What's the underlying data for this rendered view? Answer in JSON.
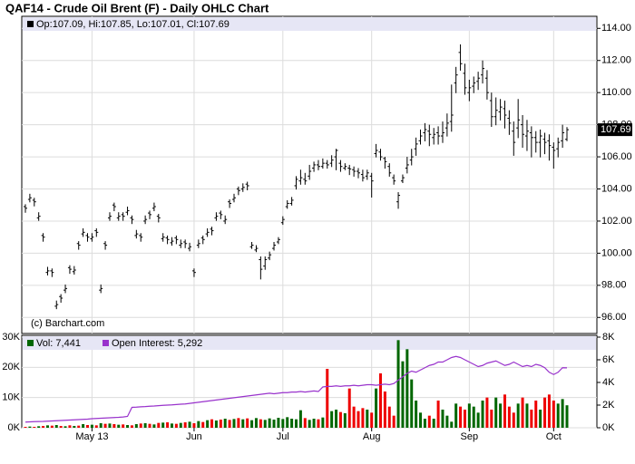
{
  "chart_data": [
    {
      "type": "ohlc",
      "title": "QAF14 - Crude Oil Brent (F) - Daily OHLC Chart",
      "legend_text": "Op:107.09, Hi:107.85, Lo:107.01, Cl:107.69",
      "watermark": "(c) Barchart.com",
      "color": "#000000",
      "categories": [
        null,
        null,
        null,
        null,
        null,
        null,
        null,
        null,
        null,
        null,
        null,
        null,
        null,
        null,
        null,
        "May 13",
        null,
        null,
        null,
        null,
        null,
        null,
        null,
        null,
        null,
        null,
        null,
        null,
        null,
        null,
        null,
        null,
        null,
        null,
        null,
        null,
        null,
        null,
        "Jun",
        null,
        null,
        null,
        null,
        null,
        null,
        null,
        null,
        null,
        null,
        null,
        null,
        null,
        null,
        null,
        null,
        null,
        null,
        null,
        "Jul",
        null,
        null,
        null,
        null,
        null,
        null,
        null,
        null,
        null,
        null,
        null,
        null,
        null,
        null,
        null,
        null,
        null,
        null,
        null,
        "Aug",
        null,
        null,
        null,
        null,
        null,
        null,
        null,
        null,
        null,
        null,
        null,
        null,
        null,
        null,
        null,
        null,
        null,
        null,
        null,
        null,
        null,
        "Sep",
        null,
        null,
        null,
        null,
        null,
        null,
        null,
        null,
        null,
        null,
        null,
        null,
        null,
        null,
        null,
        null,
        null,
        null,
        "Oct",
        null,
        null,
        null
      ],
      "open": [
        102.9,
        103.35,
        103.3,
        102.2,
        101.1,
        98.8,
        98.9,
        96.7,
        97.3,
        97.7,
        99.1,
        98.85,
        100.6,
        101.2,
        101.1,
        100.9,
        101.4,
        97.7,
        100.6,
        102.2,
        103.0,
        102.2,
        102.4,
        102.55,
        102.2,
        101.1,
        101.1,
        102.0,
        102.5,
        102.8,
        102.3,
        100.9,
        100.95,
        100.65,
        100.95,
        100.5,
        100.7,
        100.3,
        98.9,
        100.5,
        100.95,
        101.2,
        101.5,
        102.2,
        102.5,
        102.0,
        103.2,
        103.35,
        104.0,
        104.0,
        104.3,
        100.4,
        100.2,
        99.6,
        99.2,
        99.7,
        100.3,
        100.7,
        101.9,
        102.9,
        103.1,
        104.2,
        104.5,
        104.6,
        104.8,
        105.3,
        105.5,
        105.4,
        105.6,
        105.6,
        106.0,
        105.6,
        105.3,
        105.3,
        105.2,
        105.1,
        104.9,
        104.8,
        104.8,
        106.2,
        106.3,
        105.9,
        105.4,
        104.7,
        103.2,
        104.5,
        105.3,
        105.8,
        106.5,
        107.0,
        107.5,
        107.6,
        107.2,
        107.5,
        107.3,
        107.8,
        108.2,
        110.6,
        112.5,
        111.2,
        110.0,
        110.4,
        110.7,
        111.1,
        110.9,
        109.5,
        108.5,
        108.8,
        109.0,
        108.4,
        107.6,
        107.8,
        108.0,
        107.3,
        107.5,
        107.2,
        106.9,
        107.1,
        107.0,
        106.6,
        106.5,
        107.0,
        107.09
      ],
      "high": [
        103.05,
        103.7,
        103.45,
        102.55,
        101.25,
        99.15,
        99.05,
        97.05,
        97.45,
        98.05,
        99.25,
        99.2,
        100.75,
        101.55,
        101.25,
        101.25,
        101.55,
        98.05,
        100.75,
        102.55,
        103.15,
        102.55,
        102.55,
        102.9,
        102.35,
        101.45,
        101.25,
        102.35,
        102.65,
        103.15,
        102.45,
        101.25,
        101.1,
        101.0,
        101.1,
        100.85,
        100.85,
        100.65,
        99.05,
        100.85,
        101.1,
        101.55,
        101.65,
        102.55,
        102.65,
        102.35,
        103.35,
        103.7,
        104.15,
        104.35,
        104.45,
        100.7,
        100.5,
        99.8,
        99.8,
        100.1,
        100.7,
        101.0,
        102.3,
        103.3,
        103.5,
        104.8,
        105.2,
        105.0,
        105.5,
        105.7,
        105.8,
        105.9,
        105.8,
        106.1,
        106.5,
        105.8,
        105.6,
        105.5,
        105.4,
        105.3,
        105.2,
        105.2,
        105.0,
        106.8,
        106.5,
        106.0,
        105.6,
        104.9,
        103.8,
        104.9,
        106.0,
        106.5,
        107.2,
        107.7,
        108.1,
        108.0,
        107.8,
        107.9,
        108.2,
        108.7,
        110.5,
        111.6,
        113.0,
        111.8,
        110.8,
        111.0,
        111.3,
        112.0,
        111.4,
        110.0,
        109.7,
        109.6,
        109.5,
        108.9,
        108.2,
        109.6,
        108.6,
        108.3,
        107.9,
        107.6,
        107.7,
        107.5,
        107.4,
        106.9,
        107.2,
        108.0,
        107.85
      ],
      "low": [
        102.55,
        103.2,
        102.95,
        102.05,
        100.75,
        98.65,
        98.55,
        96.55,
        96.95,
        97.55,
        98.75,
        98.7,
        100.25,
        101.05,
        100.75,
        100.75,
        101.05,
        97.55,
        100.25,
        102.05,
        102.65,
        102.05,
        102.05,
        102.4,
        101.85,
        100.95,
        100.75,
        101.85,
        102.15,
        102.65,
        101.95,
        100.75,
        100.6,
        100.5,
        100.6,
        100.35,
        100.35,
        100.15,
        98.55,
        100.35,
        100.6,
        101.05,
        101.15,
        102.05,
        102.15,
        101.85,
        102.85,
        103.2,
        103.65,
        103.85,
        103.95,
        100.3,
        100.1,
        98.4,
        99.0,
        99.6,
        100.2,
        100.6,
        101.8,
        102.8,
        103.0,
        104.0,
        104.3,
        104.3,
        104.6,
        105.1,
        105.2,
        105.3,
        105.3,
        105.4,
        105.2,
        105.1,
        105.2,
        104.9,
        104.8,
        104.7,
        104.5,
        104.6,
        103.5,
        106.0,
        105.8,
        105.3,
        104.8,
        104.3,
        102.8,
        104.4,
        105.0,
        105.5,
        106.1,
        106.8,
        107.0,
        106.7,
        106.8,
        106.8,
        106.9,
        107.3,
        107.6,
        110.0,
        111.4,
        109.9,
        109.5,
        110.0,
        110.2,
        110.6,
        109.6,
        107.9,
        108.0,
        108.3,
        107.8,
        107.4,
        106.1,
        107.2,
        106.6,
        106.4,
        106.0,
        106.3,
        106.0,
        106.2,
        105.8,
        105.3,
        106.0,
        106.6,
        107.01
      ],
      "close": [
        102.8,
        103.45,
        103.2,
        102.3,
        101.0,
        98.9,
        98.8,
        96.8,
        97.2,
        97.8,
        99.0,
        98.95,
        100.5,
        101.3,
        101.0,
        101.0,
        101.3,
        97.8,
        100.5,
        102.3,
        102.9,
        102.3,
        102.3,
        102.65,
        102.1,
        101.2,
        101.0,
        102.1,
        102.4,
        102.9,
        102.2,
        101.0,
        100.85,
        100.75,
        100.85,
        100.6,
        100.6,
        100.4,
        98.8,
        100.6,
        100.85,
        101.3,
        101.4,
        102.3,
        102.4,
        102.1,
        103.1,
        103.45,
        103.9,
        104.1,
        104.2,
        100.5,
        100.3,
        99.0,
        99.6,
        99.9,
        100.5,
        100.85,
        102.1,
        103.1,
        103.3,
        104.6,
        104.7,
        104.5,
        105.1,
        105.5,
        105.4,
        105.6,
        105.5,
        105.8,
        106.4,
        105.4,
        105.4,
        105.25,
        105.1,
        105.0,
        104.7,
        105.0,
        104.5,
        106.4,
        106.0,
        105.7,
        105.0,
        104.5,
        103.6,
        104.7,
        105.5,
        106.0,
        106.8,
        107.3,
        107.7,
        107.4,
        107.4,
        107.3,
        107.5,
        108.1,
        108.6,
        111.1,
        111.8,
        110.3,
        110.3,
        110.6,
        110.9,
        111.5,
        110.0,
        108.5,
        108.9,
        109.1,
        108.6,
        108.1,
        106.9,
        108.3,
        107.4,
        107.6,
        107.2,
        106.9,
        107.3,
        106.9,
        106.7,
        106.4,
        106.9,
        107.5,
        107.69
      ],
      "ylim": [
        95,
        114.75
      ],
      "yticks": [
        {
          "value": 96,
          "label": "96.00"
        },
        {
          "value": 98,
          "label": "98.00"
        },
        {
          "value": 100,
          "label": "100.00"
        },
        {
          "value": 102,
          "label": "102.00"
        },
        {
          "value": 104,
          "label": "104.00"
        },
        {
          "value": 106,
          "label": "106.00"
        },
        {
          "value": 108,
          "label": "108.00"
        },
        {
          "value": 110,
          "label": "110.00"
        },
        {
          "value": 112,
          "label": "112.00"
        },
        {
          "value": 114,
          "label": "114.00"
        }
      ],
      "grid": true
    },
    {
      "type": "volume",
      "series": [
        {
          "name": "Vol: 7,441",
          "color": "#006600",
          "down_color": "#ee0000",
          "values": [
            300,
            400,
            300,
            500,
            600,
            800,
            700,
            900,
            600,
            500,
            800,
            600,
            700,
            1200,
            900,
            1000,
            800,
            1500,
            1300,
            1400,
            1200,
            1000,
            1100,
            900,
            800,
            1200,
            1400,
            1500,
            1300,
            1100,
            1600,
            1700,
            1800,
            1400,
            1300,
            1600,
            1800,
            2000,
            1500,
            2200,
            1900,
            2500,
            2800,
            2400,
            2700,
            3000,
            2600,
            2900,
            3200,
            2800,
            3100,
            2500,
            3200,
            2800,
            2600,
            3100,
            2700,
            3300,
            2900,
            3500,
            3000,
            2800,
            5800,
            3200,
            2600,
            3000,
            2800,
            3400,
            19500,
            5500,
            6000,
            5200,
            4800,
            13000,
            7000,
            5500,
            6500,
            6000,
            5000,
            13000,
            18000,
            12000,
            7000,
            4000,
            29000,
            22000,
            26000,
            16000,
            9000,
            5000,
            3000,
            4000,
            3000,
            9000,
            6000,
            4000,
            2000,
            8000,
            7000,
            6000,
            8000,
            7000,
            5000,
            9000,
            10000,
            6000,
            10000,
            8000,
            11000,
            7000,
            5000,
            8000,
            10000,
            8000,
            6000,
            9000,
            6000,
            10000,
            11000,
            9000,
            8000,
            9500,
            7441
          ]
        },
        {
          "name": "Open Interest: 5,292",
          "color": "#9933cc",
          "axis": "y2",
          "values": [
            500,
            520,
            540,
            550,
            560,
            580,
            600,
            620,
            640,
            660,
            680,
            700,
            720,
            740,
            760,
            800,
            820,
            840,
            860,
            880,
            900,
            920,
            950,
            1000,
            1800,
            1820,
            1850,
            1870,
            1900,
            1920,
            1950,
            1980,
            2000,
            2020,
            2050,
            2080,
            2100,
            2150,
            2200,
            2250,
            2300,
            2350,
            2400,
            2450,
            2500,
            2550,
            2600,
            2650,
            2700,
            2750,
            2800,
            2850,
            2900,
            2950,
            3000,
            3050,
            3000,
            3050,
            3100,
            3100,
            3150,
            3150,
            3200,
            3150,
            3200,
            3250,
            3200,
            3600,
            3650,
            3650,
            3700,
            3650,
            3700,
            3700,
            3750,
            3700,
            3750,
            3800,
            3800,
            3750,
            3800,
            3850,
            3800,
            3900,
            4200,
            4500,
            4800,
            5000,
            4900,
            5100,
            5300,
            5500,
            5600,
            5800,
            5800,
            6000,
            6200,
            6300,
            6200,
            6000,
            5800,
            5600,
            5400,
            5500,
            5700,
            5800,
            5900,
            5700,
            5500,
            5600,
            5800,
            5600,
            5400,
            5500,
            5400,
            5600,
            5500,
            5300,
            4900,
            4700,
            4900,
            5300,
            5292
          ]
        }
      ],
      "ylim": [
        0,
        30000
      ],
      "yticks": [
        {
          "value": 0,
          "label": "0K"
        },
        {
          "value": 10000,
          "label": "10K"
        },
        {
          "value": 20000,
          "label": "20K"
        },
        {
          "value": 30000,
          "label": "30K"
        }
      ],
      "y2lim": [
        0,
        8000
      ],
      "y2ticks": [
        {
          "value": 0,
          "label": "0K"
        },
        {
          "value": 2000,
          "label": "2K"
        },
        {
          "value": 4000,
          "label": "4K"
        },
        {
          "value": 6000,
          "label": "6K"
        },
        {
          "value": 8000,
          "label": "8K"
        }
      ],
      "grid": true
    }
  ]
}
